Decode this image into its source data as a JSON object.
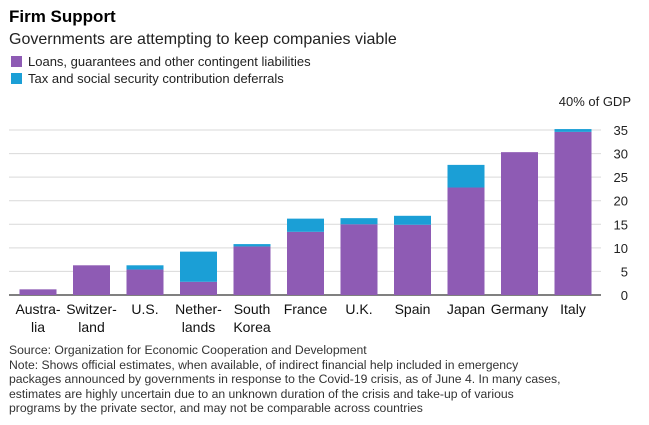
{
  "chart_data": {
    "type": "bar",
    "stacked": true,
    "title": "Firm Support",
    "subtitle": "Governments are attempting to keep companies viable",
    "ylabel_top": "40% of GDP",
    "ylim": [
      0,
      35
    ],
    "yticks": [
      0,
      5,
      10,
      15,
      20,
      25,
      30,
      35
    ],
    "categories": [
      [
        "Austra-",
        "lia"
      ],
      [
        "Switzer-",
        "land"
      ],
      [
        "U.S."
      ],
      [
        "Nether-",
        "lands"
      ],
      [
        "South",
        "Korea"
      ],
      [
        "France"
      ],
      [
        "U.K."
      ],
      [
        "Spain"
      ],
      [
        "Japan"
      ],
      [
        "Germany"
      ],
      [
        "Italy"
      ]
    ],
    "series": [
      {
        "name": "Loans, guarantees and other contingent liabilities",
        "color": "#8e5bb4",
        "values": [
          1.2,
          6.3,
          5.4,
          2.8,
          10.3,
          13.4,
          15.0,
          14.9,
          22.8,
          30.3,
          34.6
        ]
      },
      {
        "name": "Tax and social security contribution deferrals",
        "color": "#1b9fd6",
        "values": [
          0,
          0,
          0.9,
          6.4,
          0.5,
          2.8,
          1.3,
          1.9,
          4.8,
          0,
          0.6
        ]
      }
    ]
  },
  "notes": {
    "source": "Source: Organization for Economic Cooperation and Development",
    "lines": [
      "Note: Shows official estimates, when available, of indirect financial help included in emergency",
      "packages announced by governments in response to the Covid-19 crisis, as of June 4. In many cases,",
      "estimates are highly uncertain due to an unknown duration of the crisis and take-up of various",
      "programs by the private sector, and may not be comparable across countries"
    ]
  }
}
